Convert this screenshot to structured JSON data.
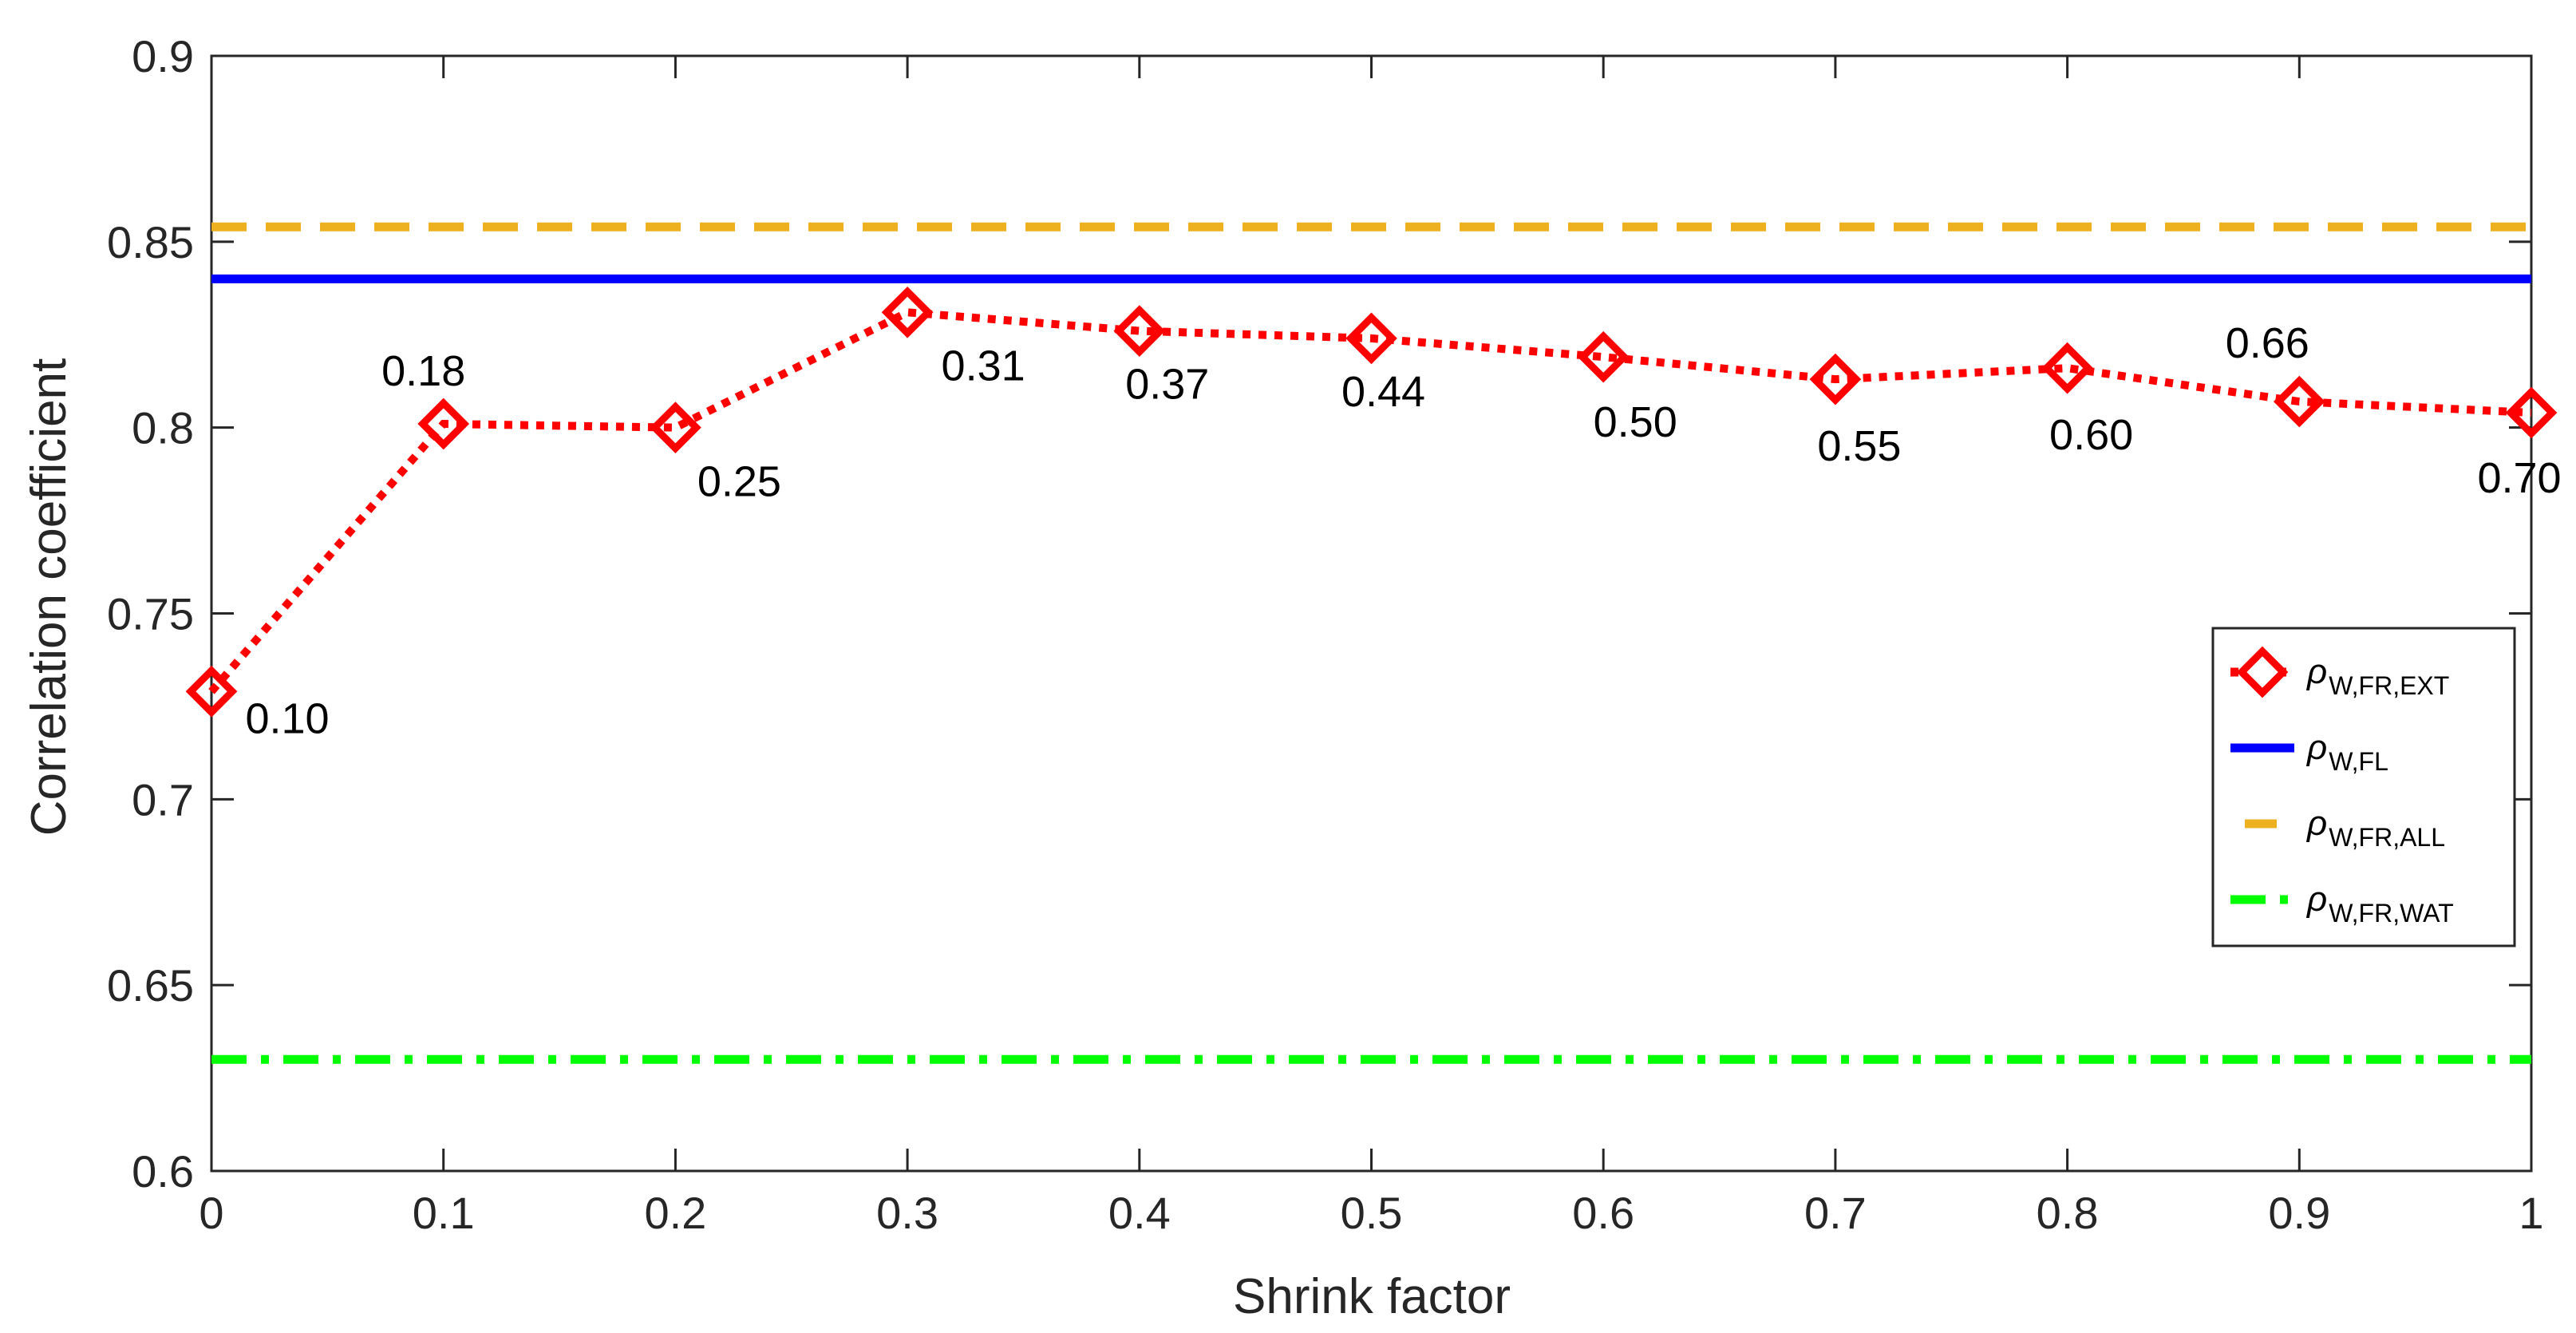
{
  "chart_data": {
    "type": "line",
    "title": "",
    "xlabel": "Shrink factor",
    "ylabel": "Correlation coefficient",
    "xlim": [
      0,
      1
    ],
    "ylim": [
      0.6,
      0.9
    ],
    "x_ticks": [
      "0",
      "0.1",
      "0.2",
      "0.3",
      "0.4",
      "0.5",
      "0.6",
      "0.7",
      "0.8",
      "0.9",
      "1"
    ],
    "y_ticks": [
      "0.6",
      "0.65",
      "0.7",
      "0.75",
      "0.8",
      "0.85",
      "0.9"
    ],
    "grid": false,
    "legend_position": "right",
    "series": [
      {
        "name": "ρW,FR,EXT",
        "symbol": "ρ",
        "subscript": "W,FR,EXT",
        "style": "dotted-diamond",
        "color": "#ff0000",
        "x": [
          0,
          0.1,
          0.2,
          0.3,
          0.4,
          0.5,
          0.6,
          0.7,
          0.8,
          0.9,
          1.0
        ],
        "values": [
          0.729,
          0.801,
          0.8,
          0.831,
          0.826,
          0.824,
          0.819,
          0.813,
          0.816,
          0.807,
          0.804
        ],
        "point_labels": [
          "0.10",
          "0.18",
          "0.25",
          "0.31",
          "0.37",
          "0.44",
          "0.50",
          "0.55",
          "0.60",
          "0.66",
          "0.70"
        ]
      },
      {
        "name": "ρW,FL",
        "symbol": "ρ",
        "subscript": "W,FL",
        "style": "solid",
        "color": "#0000ff",
        "constant": 0.84
      },
      {
        "name": "ρW,FR,ALL",
        "symbol": "ρ",
        "subscript": "W,FR,ALL",
        "style": "dashed",
        "color": "#edb120",
        "constant": 0.854
      },
      {
        "name": "ρW,FR,WAT",
        "symbol": "ρ",
        "subscript": "W,FR,WAT",
        "style": "dashdot",
        "color": "#00ff00",
        "constant": 0.63
      }
    ]
  }
}
